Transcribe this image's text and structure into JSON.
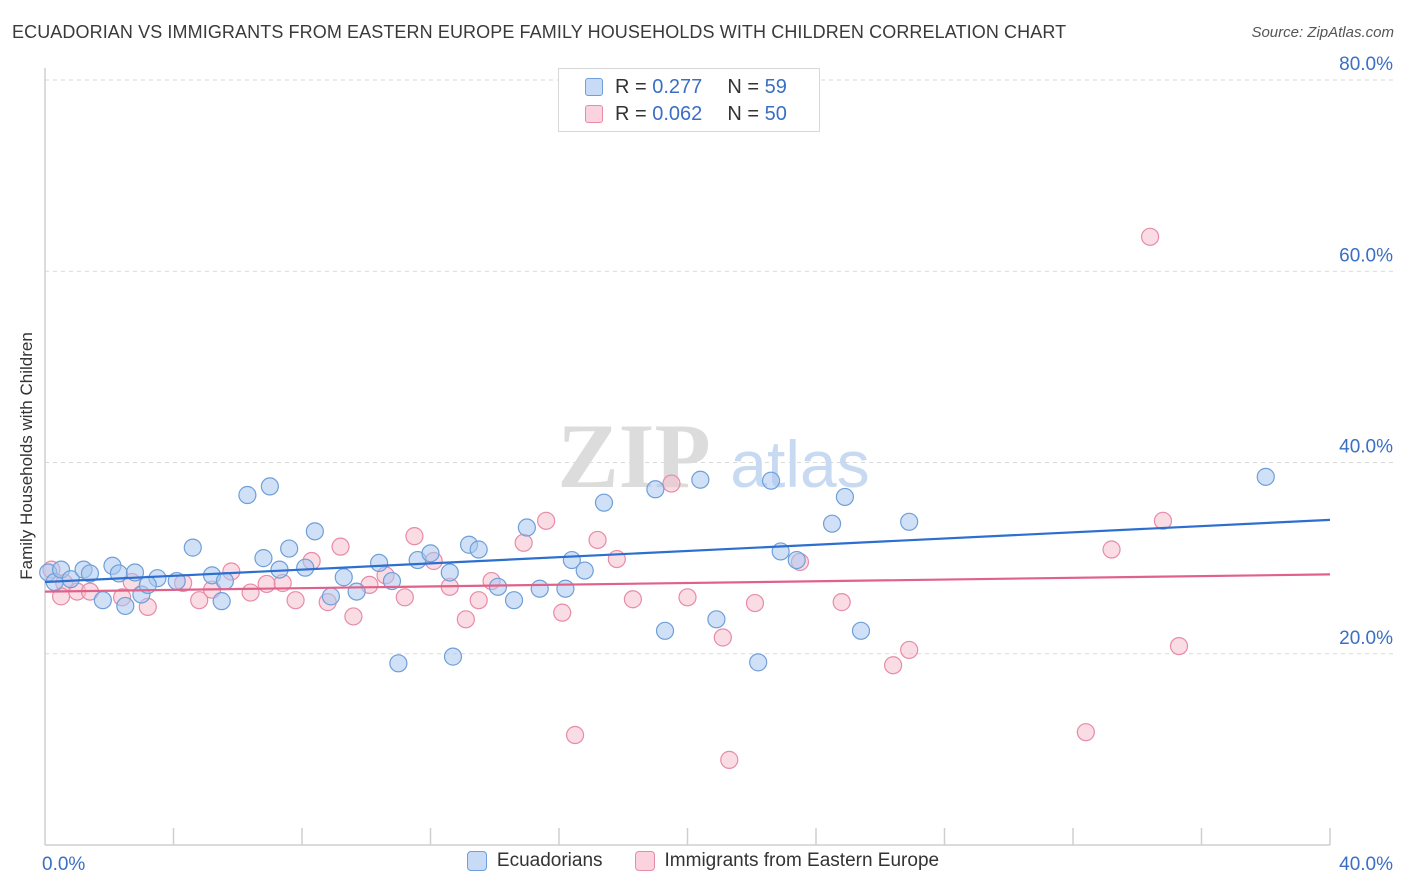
{
  "header": {
    "title": "ECUADORIAN VS IMMIGRANTS FROM EASTERN EUROPE FAMILY HOUSEHOLDS WITH CHILDREN CORRELATION CHART",
    "source": "Source: ZipAtlas.com"
  },
  "watermark": {
    "zip": "ZIP",
    "atlas": "atlas"
  },
  "colors": {
    "blue_fill": "#a9c8f0",
    "blue_stroke": "#6f9fd8",
    "blue_line": "#2d6fce",
    "pink_fill": "#f6bfd0",
    "pink_stroke": "#e88ba8",
    "pink_line": "#e0628a",
    "axis_label": "#3a6fc4"
  },
  "legend_top": [
    {
      "r_label": "R =",
      "r_value": "0.277",
      "n_label": "N =",
      "n_value": "59"
    },
    {
      "r_label": "R =",
      "r_value": "0.062",
      "n_label": "N =",
      "n_value": "50"
    }
  ],
  "chart_data": {
    "type": "scatter",
    "title": "ECUADORIAN VS IMMIGRANTS FROM EASTERN EUROPE FAMILY HOUSEHOLDS WITH CHILDREN CORRELATION CHART",
    "xlabel": "",
    "ylabel": "Family Households with Children",
    "xlim": [
      0,
      40
    ],
    "ylim": [
      0,
      80
    ],
    "x_tick_labels": [
      "0.0%",
      "40.0%"
    ],
    "y_ticks": [
      20,
      40,
      60,
      80
    ],
    "y_tick_labels": [
      "20.0%",
      "40.0%",
      "60.0%",
      "80.0%"
    ],
    "grid": "horizontal dashed",
    "legend_position": "top-center and bottom",
    "series": [
      {
        "name": "Ecuadorians",
        "color": "#a9c8f0",
        "trend": {
          "x": [
            0,
            40
          ],
          "y": [
            27.5,
            34.0
          ]
        },
        "points": [
          [
            0.1,
            28.5
          ],
          [
            0.3,
            27.5
          ],
          [
            0.5,
            28.8
          ],
          [
            0.8,
            27.8
          ],
          [
            1.2,
            28.8
          ],
          [
            1.4,
            28.4
          ],
          [
            2.1,
            29.2
          ],
          [
            2.3,
            28.4
          ],
          [
            2.8,
            28.5
          ],
          [
            3.5,
            27.9
          ],
          [
            4.1,
            27.6
          ],
          [
            4.6,
            31.1
          ],
          [
            5.2,
            28.2
          ],
          [
            5.6,
            27.6
          ],
          [
            3.0,
            26.2
          ],
          [
            2.5,
            25.0
          ],
          [
            6.3,
            36.6
          ],
          [
            6.8,
            30.0
          ],
          [
            7.0,
            37.5
          ],
          [
            7.6,
            31.0
          ],
          [
            8.4,
            32.8
          ],
          [
            8.9,
            26.0
          ],
          [
            9.3,
            28.0
          ],
          [
            9.7,
            26.5
          ],
          [
            10.4,
            29.5
          ],
          [
            10.8,
            27.6
          ],
          [
            11.6,
            29.8
          ],
          [
            12.0,
            30.5
          ],
          [
            11.0,
            19.0
          ],
          [
            13.2,
            31.4
          ],
          [
            13.5,
            30.9
          ],
          [
            14.1,
            27.0
          ],
          [
            14.6,
            25.6
          ],
          [
            15.0,
            33.2
          ],
          [
            15.4,
            26.8
          ],
          [
            16.4,
            29.8
          ],
          [
            16.8,
            28.7
          ],
          [
            17.4,
            35.8
          ],
          [
            19.0,
            37.2
          ],
          [
            19.3,
            22.4
          ],
          [
            20.4,
            38.2
          ],
          [
            20.9,
            23.6
          ],
          [
            22.2,
            19.1
          ],
          [
            22.6,
            38.1
          ],
          [
            22.9,
            30.7
          ],
          [
            23.4,
            29.8
          ],
          [
            24.5,
            33.6
          ],
          [
            24.9,
            36.4
          ],
          [
            25.4,
            22.4
          ],
          [
            26.9,
            33.8
          ],
          [
            12.7,
            19.7
          ],
          [
            38.0,
            38.5
          ],
          [
            5.5,
            25.5
          ],
          [
            7.3,
            28.8
          ],
          [
            12.6,
            28.5
          ],
          [
            8.1,
            29.0
          ],
          [
            3.2,
            27.2
          ],
          [
            16.2,
            26.8
          ],
          [
            1.8,
            25.6
          ]
        ]
      },
      {
        "name": "Immigrants from Eastern Europe",
        "color": "#f6bfd0",
        "trend": {
          "x": [
            0,
            40
          ],
          "y": [
            26.5,
            28.3
          ]
        },
        "points": [
          [
            0.2,
            28.8
          ],
          [
            0.6,
            27.4
          ],
          [
            1.0,
            26.5
          ],
          [
            1.4,
            26.5
          ],
          [
            2.4,
            25.9
          ],
          [
            2.7,
            27.5
          ],
          [
            3.2,
            24.9
          ],
          [
            4.3,
            27.4
          ],
          [
            4.8,
            25.6
          ],
          [
            5.2,
            26.7
          ],
          [
            5.8,
            28.6
          ],
          [
            6.4,
            26.4
          ],
          [
            6.9,
            27.3
          ],
          [
            7.4,
            27.4
          ],
          [
            7.8,
            25.6
          ],
          [
            8.3,
            29.7
          ],
          [
            8.8,
            25.4
          ],
          [
            9.2,
            31.2
          ],
          [
            9.6,
            23.9
          ],
          [
            10.1,
            27.2
          ],
          [
            10.6,
            28.2
          ],
          [
            11.2,
            25.9
          ],
          [
            11.5,
            32.3
          ],
          [
            12.1,
            29.7
          ],
          [
            12.6,
            27.0
          ],
          [
            13.1,
            23.6
          ],
          [
            13.5,
            25.6
          ],
          [
            13.9,
            27.6
          ],
          [
            14.9,
            31.6
          ],
          [
            15.6,
            33.9
          ],
          [
            16.1,
            24.3
          ],
          [
            17.2,
            31.9
          ],
          [
            17.8,
            29.9
          ],
          [
            18.3,
            25.7
          ],
          [
            19.5,
            37.8
          ],
          [
            20.0,
            25.9
          ],
          [
            21.1,
            21.7
          ],
          [
            22.1,
            25.3
          ],
          [
            23.5,
            29.6
          ],
          [
            24.8,
            25.4
          ],
          [
            26.4,
            18.8
          ],
          [
            26.9,
            20.4
          ],
          [
            16.5,
            11.5
          ],
          [
            21.3,
            8.9
          ],
          [
            32.4,
            11.8
          ],
          [
            33.2,
            30.9
          ],
          [
            34.4,
            63.6
          ],
          [
            34.8,
            33.9
          ],
          [
            35.3,
            20.8
          ],
          [
            0.5,
            26.0
          ]
        ]
      }
    ]
  },
  "legend_bottom": [
    {
      "label": "Ecuadorians"
    },
    {
      "label": "Immigrants from Eastern Europe"
    }
  ]
}
